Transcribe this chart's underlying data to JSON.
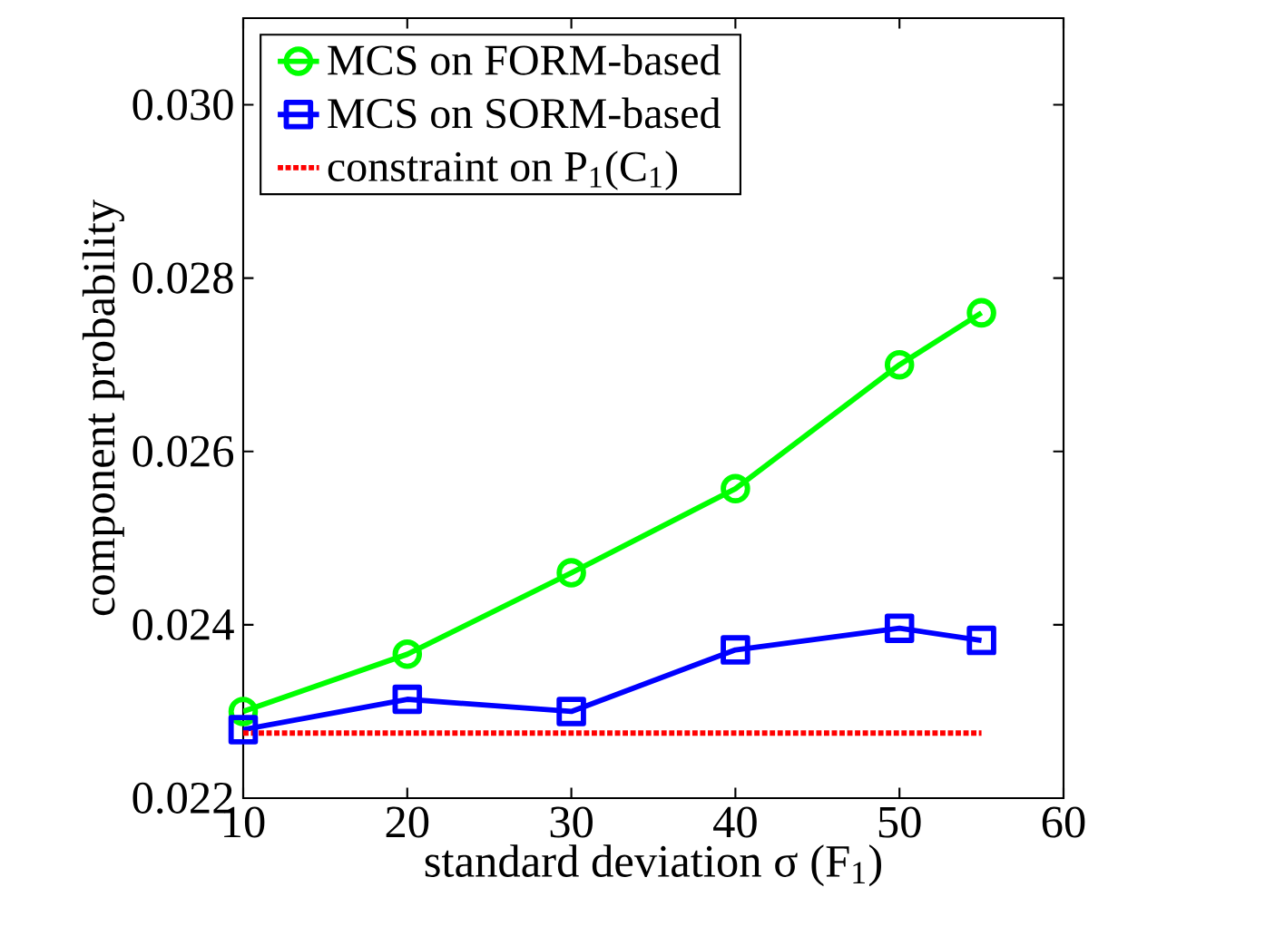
{
  "chart_data": {
    "type": "line",
    "xlabel": "standard deviation σ (F$_{1}$)",
    "ylabel": "component probability",
    "x": [
      10,
      20,
      30,
      40,
      50,
      55
    ],
    "series": [
      {
        "name": "MCS on FORM-based",
        "color": "#00ff00",
        "marker": "circle",
        "line_style": "solid",
        "values": [
          0.023,
          0.02366,
          0.0246,
          0.02557,
          0.027,
          0.0276
        ]
      },
      {
        "name": "MCS on SORM-based",
        "color": "#0000ff",
        "marker": "square",
        "line_style": "solid",
        "values": [
          0.02279,
          0.02314,
          0.023,
          0.02371,
          0.02396,
          0.02382
        ]
      },
      {
        "name": "constraint on P$_{1}$(C$_{1}$)",
        "color": "#ff0000",
        "marker": "none",
        "line_style": "dotted",
        "values": [
          0.02275,
          0.02275,
          0.02275,
          0.02275,
          0.02275,
          0.02275
        ]
      }
    ],
    "xlim": [
      10,
      60
    ],
    "ylim": [
      0.022,
      0.031
    ],
    "xticks": [
      10,
      20,
      30,
      40,
      50,
      60
    ],
    "yticks": [
      0.022,
      0.024,
      0.026,
      0.028,
      {
        "value": 0.03,
        "label": "0.030"
      }
    ],
    "grid": false,
    "legend": "top left"
  }
}
